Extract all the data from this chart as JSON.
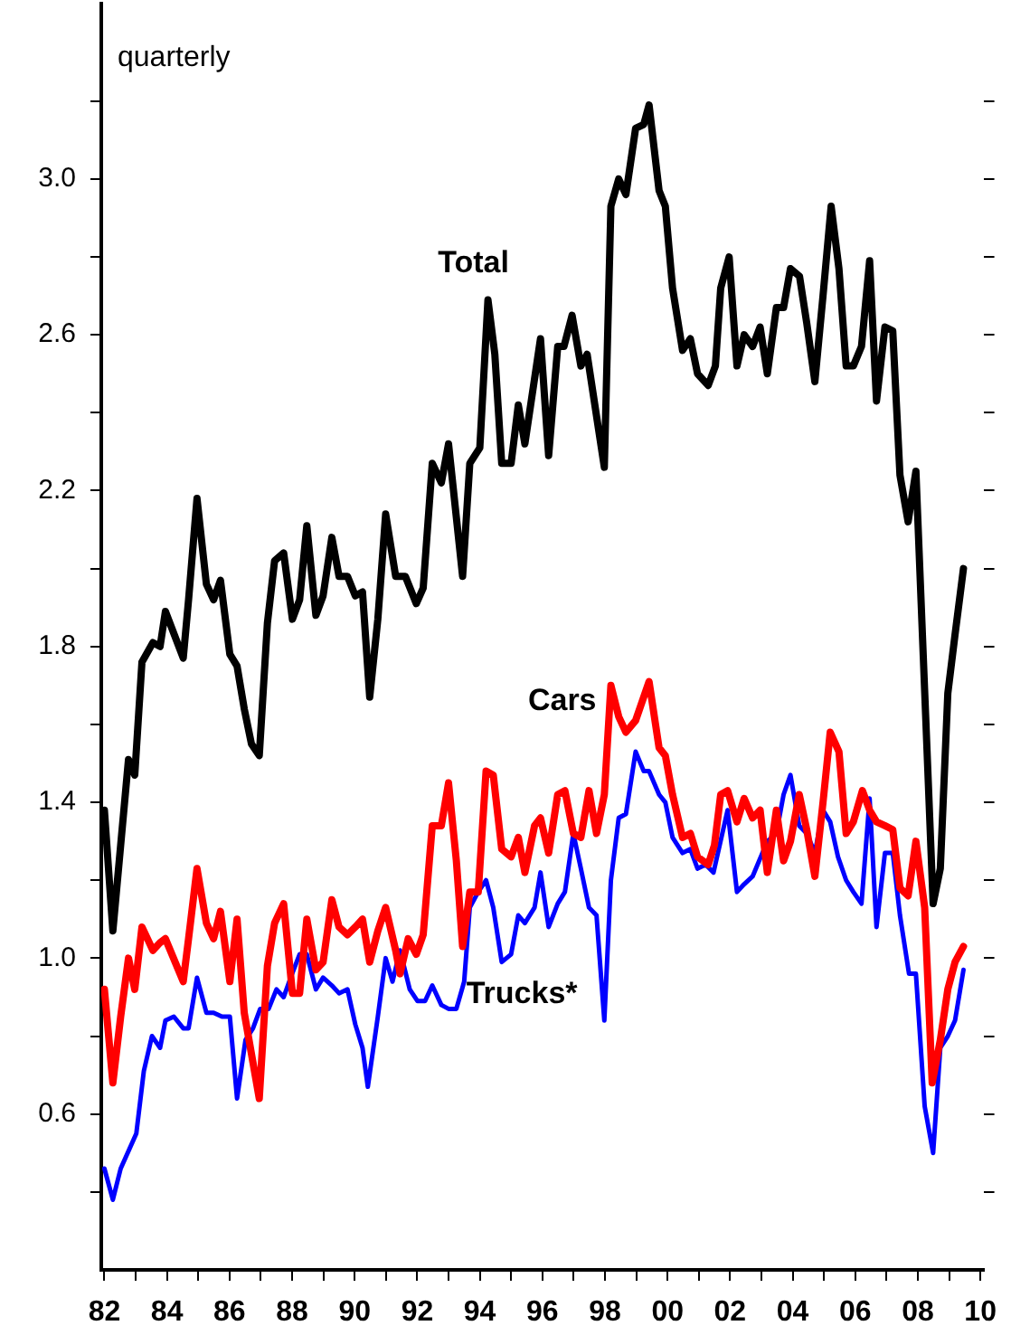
{
  "chart_data": {
    "type": "line",
    "annotations": [
      "quarterly"
    ],
    "xlim": [
      1981.9,
      2010.1
    ],
    "ylim": [
      0.2,
      3.45
    ],
    "xticks": [
      {
        "value": 1982,
        "label": "82"
      },
      {
        "value": 1983,
        "label": null
      },
      {
        "value": 1984,
        "label": "84"
      },
      {
        "value": 1985,
        "label": null
      },
      {
        "value": 1986,
        "label": "86"
      },
      {
        "value": 1987,
        "label": null
      },
      {
        "value": 1988,
        "label": "88"
      },
      {
        "value": 1989,
        "label": null
      },
      {
        "value": 1990,
        "label": "90"
      },
      {
        "value": 1991,
        "label": null
      },
      {
        "value": 1992,
        "label": "92"
      },
      {
        "value": 1993,
        "label": null
      },
      {
        "value": 1994,
        "label": "94"
      },
      {
        "value": 1995,
        "label": null
      },
      {
        "value": 1996,
        "label": "96"
      },
      {
        "value": 1997,
        "label": null
      },
      {
        "value": 1998,
        "label": "98"
      },
      {
        "value": 1999,
        "label": null
      },
      {
        "value": 2000,
        "label": "00"
      },
      {
        "value": 2001,
        "label": null
      },
      {
        "value": 2002,
        "label": "02"
      },
      {
        "value": 2003,
        "label": null
      },
      {
        "value": 2004,
        "label": "04"
      },
      {
        "value": 2005,
        "label": null
      },
      {
        "value": 2006,
        "label": "06"
      },
      {
        "value": 2007,
        "label": null
      },
      {
        "value": 2008,
        "label": "08"
      },
      {
        "value": 2009,
        "label": null
      },
      {
        "value": 2010,
        "label": "10"
      }
    ],
    "yticks": [
      {
        "value": 0.4,
        "label": null
      },
      0.6,
      {
        "value": 0.8,
        "label": null
      },
      {
        "value": 1,
        "label": "1.0"
      },
      {
        "value": 1.2,
        "label": null
      },
      1.4,
      {
        "value": 1.6,
        "label": null
      },
      1.8,
      {
        "value": 2,
        "label": null
      },
      2.2,
      {
        "value": 2.4,
        "label": null
      },
      2.6,
      {
        "value": 2.8,
        "label": null
      },
      {
        "value": 3,
        "label": "3.0"
      },
      {
        "value": 3.2,
        "label": null
      }
    ],
    "grid": false,
    "legend": false,
    "marker": "none",
    "line_style": "solid",
    "series": [
      {
        "name": "Total",
        "color": "#000000",
        "x": [
          1982.0,
          1982.27,
          1982.52,
          1982.77,
          1982.97,
          1983.2,
          1983.55,
          1983.78,
          1983.95,
          1984.52,
          1984.69,
          1984.96,
          1985.26,
          1985.49,
          1985.71,
          1986.01,
          1986.24,
          1986.47,
          1986.7,
          1986.95,
          1987.21,
          1987.44,
          1987.73,
          1988.01,
          1988.24,
          1988.47,
          1988.76,
          1988.99,
          1989.27,
          1989.5,
          1989.77,
          1990.02,
          1990.25,
          1990.48,
          1990.74,
          1990.99,
          1991.31,
          1991.62,
          1991.97,
          1992.19,
          1992.48,
          1992.77,
          1993.0,
          1993.45,
          1993.68,
          1994.0,
          1994.26,
          1994.48,
          1994.7,
          1995.0,
          1995.23,
          1995.44,
          1995.94,
          1996.2,
          1996.49,
          1996.69,
          1996.95,
          1997.23,
          1997.43,
          1997.98,
          1998.19,
          1998.44,
          1998.67,
          1998.98,
          1999.24,
          1999.41,
          1999.73,
          1999.93,
          2000.16,
          2000.48,
          2000.73,
          2000.96,
          2001.3,
          2001.53,
          2001.7,
          2001.97,
          2002.22,
          2002.45,
          2002.72,
          2002.96,
          2003.19,
          2003.48,
          2003.71,
          2003.93,
          2004.22,
          2004.45,
          2004.71,
          2004.97,
          2005.23,
          2005.48,
          2005.71,
          2005.94,
          2006.2,
          2006.46,
          2006.68,
          2006.95,
          2007.2,
          2007.43,
          2007.69,
          2007.94,
          2008.49,
          2008.72,
          2008.96,
          2009.19,
          2009.46
        ],
        "values": [
          1.38,
          1.07,
          1.29,
          1.51,
          1.47,
          1.76,
          1.81,
          1.8,
          1.89,
          1.77,
          1.92,
          2.18,
          1.96,
          1.92,
          1.97,
          1.78,
          1.75,
          1.64,
          1.55,
          1.52,
          1.86,
          2.02,
          2.04,
          1.87,
          1.92,
          2.11,
          1.88,
          1.93,
          2.08,
          1.98,
          1.98,
          1.93,
          1.94,
          1.67,
          1.87,
          2.14,
          1.98,
          1.98,
          1.91,
          1.95,
          2.27,
          2.22,
          2.32,
          1.98,
          2.27,
          2.31,
          2.69,
          2.55,
          2.27,
          2.27,
          2.42,
          2.32,
          2.59,
          2.29,
          2.57,
          2.57,
          2.65,
          2.52,
          2.55,
          2.26,
          2.93,
          3.0,
          2.96,
          3.13,
          3.14,
          3.19,
          2.97,
          2.93,
          2.72,
          2.56,
          2.59,
          2.5,
          2.47,
          2.52,
          2.72,
          2.8,
          2.52,
          2.6,
          2.57,
          2.62,
          2.5,
          2.67,
          2.67,
          2.77,
          2.75,
          2.63,
          2.48,
          2.7,
          2.93,
          2.77,
          2.52,
          2.52,
          2.57,
          2.79,
          2.43,
          2.62,
          2.61,
          2.24,
          2.12,
          2.25,
          1.14,
          1.23,
          1.68,
          1.83,
          2.0
        ]
      },
      {
        "name": "Cars",
        "color": "#ff0000",
        "x": [
          1982.0,
          1982.27,
          1982.52,
          1982.77,
          1982.97,
          1983.2,
          1983.55,
          1983.78,
          1983.95,
          1984.52,
          1984.69,
          1984.96,
          1985.26,
          1985.49,
          1985.71,
          1986.01,
          1986.24,
          1986.47,
          1986.95,
          1987.21,
          1987.44,
          1987.73,
          1988.01,
          1988.24,
          1988.47,
          1988.76,
          1988.99,
          1989.27,
          1989.5,
          1989.77,
          1990.02,
          1990.25,
          1990.48,
          1990.74,
          1990.99,
          1991.31,
          1991.45,
          1991.71,
          1991.97,
          1992.19,
          1992.48,
          1992.77,
          1993.0,
          1993.25,
          1993.45,
          1993.68,
          1993.95,
          1994.2,
          1994.43,
          1994.7,
          1995.0,
          1995.23,
          1995.44,
          1995.75,
          1995.94,
          1996.2,
          1996.49,
          1996.72,
          1996.99,
          1997.23,
          1997.49,
          1997.73,
          1997.98,
          1998.19,
          1998.44,
          1998.67,
          1998.98,
          1999.41,
          1999.73,
          1999.93,
          2000.16,
          2000.48,
          2000.73,
          2000.96,
          2001.3,
          2001.5,
          2001.7,
          2001.92,
          2002.22,
          2002.45,
          2002.72,
          2002.96,
          2003.19,
          2003.48,
          2003.71,
          2003.93,
          2004.21,
          2004.45,
          2004.71,
          2004.97,
          2005.2,
          2005.48,
          2005.71,
          2005.94,
          2006.23,
          2006.46,
          2006.68,
          2006.95,
          2007.2,
          2007.43,
          2007.69,
          2007.94,
          2008.22,
          2008.46,
          2008.72,
          2008.96,
          2009.19,
          2009.46
        ],
        "values": [
          0.92,
          0.68,
          0.85,
          1.0,
          0.92,
          1.08,
          1.02,
          1.04,
          1.05,
          0.94,
          1.05,
          1.23,
          1.09,
          1.05,
          1.12,
          0.94,
          1.1,
          0.86,
          0.64,
          0.98,
          1.09,
          1.14,
          0.91,
          0.91,
          1.1,
          0.97,
          0.99,
          1.15,
          1.08,
          1.06,
          1.08,
          1.1,
          0.99,
          1.07,
          1.13,
          1.02,
          0.96,
          1.05,
          1.01,
          1.06,
          1.34,
          1.34,
          1.45,
          1.25,
          1.03,
          1.17,
          1.17,
          1.48,
          1.47,
          1.28,
          1.26,
          1.31,
          1.22,
          1.34,
          1.36,
          1.27,
          1.42,
          1.43,
          1.32,
          1.31,
          1.43,
          1.32,
          1.42,
          1.7,
          1.62,
          1.58,
          1.61,
          1.71,
          1.54,
          1.52,
          1.42,
          1.31,
          1.32,
          1.26,
          1.24,
          1.29,
          1.42,
          1.43,
          1.35,
          1.41,
          1.36,
          1.38,
          1.22,
          1.38,
          1.25,
          1.3,
          1.42,
          1.33,
          1.21,
          1.4,
          1.58,
          1.53,
          1.32,
          1.35,
          1.43,
          1.38,
          1.35,
          1.34,
          1.33,
          1.18,
          1.16,
          1.3,
          1.13,
          0.68,
          0.79,
          0.92,
          0.99,
          1.03
        ]
      },
      {
        "name": "Trucks*",
        "color": "#0000ff",
        "x": [
          1982.0,
          1982.27,
          1982.52,
          1983.02,
          1983.26,
          1983.52,
          1983.78,
          1983.95,
          1984.22,
          1984.52,
          1984.69,
          1984.96,
          1985.26,
          1985.49,
          1985.76,
          1986.01,
          1986.24,
          1986.51,
          1986.75,
          1986.98,
          1987.25,
          1987.5,
          1987.73,
          1988.0,
          1988.24,
          1988.47,
          1988.76,
          1988.99,
          1989.27,
          1989.5,
          1989.77,
          1990.02,
          1990.25,
          1990.42,
          1990.74,
          1990.99,
          1991.21,
          1991.45,
          1991.76,
          1992.01,
          1992.25,
          1992.48,
          1992.77,
          1993.0,
          1993.25,
          1993.5,
          1993.68,
          1993.95,
          1994.2,
          1994.43,
          1994.7,
          1995.0,
          1995.23,
          1995.44,
          1995.75,
          1995.94,
          1996.2,
          1996.49,
          1996.72,
          1996.99,
          1997.23,
          1997.49,
          1997.73,
          1997.98,
          1998.19,
          1998.44,
          1998.67,
          1998.98,
          1999.24,
          1999.41,
          1999.73,
          1999.93,
          2000.16,
          2000.48,
          2000.73,
          2000.96,
          2001.22,
          2001.47,
          2001.92,
          2002.22,
          2002.45,
          2002.72,
          2003.19,
          2003.48,
          2003.71,
          2003.93,
          2004.21,
          2004.45,
          2004.71,
          2004.97,
          2005.2,
          2005.45,
          2005.71,
          2005.94,
          2006.2,
          2006.46,
          2006.68,
          2006.95,
          2007.2,
          2007.43,
          2007.72,
          2007.94,
          2008.22,
          2008.49,
          2008.72,
          2008.96,
          2009.19,
          2009.46
        ],
        "values": [
          0.46,
          0.38,
          0.46,
          0.55,
          0.71,
          0.8,
          0.77,
          0.84,
          0.85,
          0.82,
          0.82,
          0.95,
          0.86,
          0.86,
          0.85,
          0.85,
          0.64,
          0.79,
          0.82,
          0.87,
          0.87,
          0.92,
          0.9,
          0.96,
          1.01,
          1.01,
          0.92,
          0.95,
          0.93,
          0.91,
          0.92,
          0.83,
          0.77,
          0.67,
          0.85,
          1.0,
          0.94,
          1.02,
          0.92,
          0.89,
          0.89,
          0.93,
          0.88,
          0.87,
          0.87,
          0.94,
          1.13,
          1.17,
          1.2,
          1.13,
          0.99,
          1.01,
          1.11,
          1.09,
          1.13,
          1.22,
          1.08,
          1.14,
          1.17,
          1.32,
          1.23,
          1.13,
          1.11,
          0.84,
          1.2,
          1.36,
          1.37,
          1.53,
          1.48,
          1.48,
          1.42,
          1.4,
          1.31,
          1.27,
          1.28,
          1.23,
          1.24,
          1.22,
          1.38,
          1.17,
          1.19,
          1.21,
          1.3,
          1.32,
          1.42,
          1.47,
          1.34,
          1.32,
          1.27,
          1.38,
          1.35,
          1.26,
          1.2,
          1.17,
          1.14,
          1.41,
          1.08,
          1.27,
          1.27,
          1.11,
          0.96,
          0.96,
          0.62,
          0.5,
          0.77,
          0.8,
          0.84,
          0.97
        ]
      }
    ]
  }
}
